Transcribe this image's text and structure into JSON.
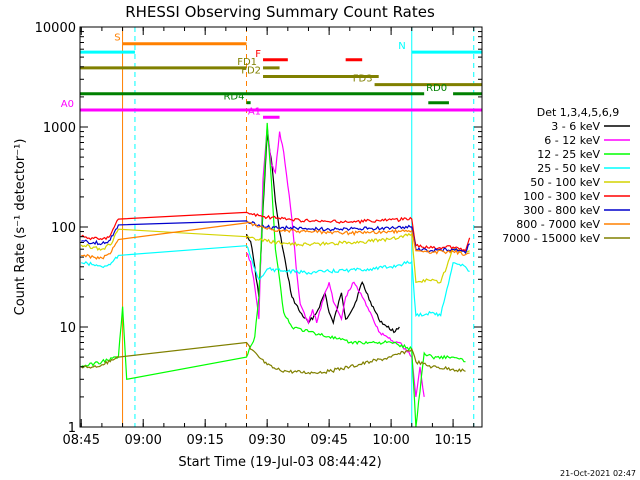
{
  "chart_data": {
    "type": "line",
    "title": "RHESSI Observing Summary Count Rates",
    "xlabel": "Start Time (19-Jul-03 08:44:42)",
    "ylabel": "Count Rate (s⁻¹ detector⁻¹)",
    "y_scale": "log",
    "ylim": [
      1,
      10000
    ],
    "xlim": [
      "08:44:42",
      "10:22:00"
    ],
    "x_ticks": [
      "08:45",
      "09:00",
      "09:15",
      "09:30",
      "09:45",
      "10:00",
      "10:15"
    ],
    "y_ticks": [
      "1",
      "10",
      "100",
      "1000",
      "10000"
    ],
    "legend_title": "Det 1,3,4,5,6,9",
    "legend_position": "right",
    "timestamp": "21-Oct-2021 02:47",
    "series": [
      {
        "name": "3 - 6 keV",
        "color": "#000000",
        "points": [
          [
            "09:25",
            85
          ],
          [
            "09:26",
            72
          ],
          [
            "09:27",
            40
          ],
          [
            "09:28",
            20
          ],
          [
            "09:29",
            150
          ],
          [
            "09:30",
            850
          ],
          [
            "09:31",
            480
          ],
          [
            "09:32",
            180
          ],
          [
            "09:33",
            90
          ],
          [
            "09:34",
            55
          ],
          [
            "09:35",
            32
          ],
          [
            "09:36",
            20
          ],
          [
            "09:38",
            14
          ],
          [
            "09:40",
            11
          ],
          [
            "09:42",
            14
          ],
          [
            "09:44",
            22
          ],
          [
            "09:45",
            14
          ],
          [
            "09:46",
            11
          ],
          [
            "09:48",
            22
          ],
          [
            "09:49",
            12
          ],
          [
            "09:51",
            16
          ],
          [
            "09:53",
            28
          ],
          [
            "09:55",
            18
          ],
          [
            "09:57",
            12
          ],
          [
            "09:59",
            10
          ],
          [
            "10:01",
            9
          ],
          [
            "10:02",
            10
          ]
        ]
      },
      {
        "name": "6 - 12 keV",
        "color": "#ff00ff",
        "points": [
          [
            "09:25",
            55
          ],
          [
            "09:26",
            45
          ],
          [
            "09:27",
            25
          ],
          [
            "09:28",
            12
          ],
          [
            "09:29",
            300
          ],
          [
            "09:30",
            1000
          ],
          [
            "09:31",
            420
          ],
          [
            "09:32",
            350
          ],
          [
            "09:33",
            900
          ],
          [
            "09:34",
            560
          ],
          [
            "09:35",
            260
          ],
          [
            "09:36",
            120
          ],
          [
            "09:37",
            40
          ],
          [
            "09:38",
            17
          ],
          [
            "09:40",
            11
          ],
          [
            "09:41",
            15
          ],
          [
            "09:42",
            11
          ],
          [
            "09:44",
            22
          ],
          [
            "09:45",
            28
          ],
          [
            "09:46",
            18
          ],
          [
            "09:48",
            12
          ],
          [
            "09:49",
            20
          ],
          [
            "09:51",
            28
          ],
          [
            "09:53",
            20
          ],
          [
            "09:55",
            14
          ],
          [
            "09:57",
            9
          ],
          [
            "09:59",
            8
          ],
          [
            "10:01",
            7
          ],
          [
            "10:02",
            7
          ],
          [
            "10:05",
            5
          ],
          [
            "10:06",
            2
          ],
          [
            "10:07",
            4
          ],
          [
            "10:08",
            2
          ]
        ]
      },
      {
        "name": "12 - 25 keV",
        "color": "#00ff00",
        "points": [
          [
            "08:45",
            4
          ],
          [
            "08:50",
            4.5
          ],
          [
            "08:54",
            5
          ],
          [
            "08:55",
            16
          ],
          [
            "08:56",
            3
          ],
          [
            "09:25",
            5
          ],
          [
            "09:27",
            8
          ],
          [
            "09:28",
            20
          ],
          [
            "09:29",
            180
          ],
          [
            "09:30",
            1100
          ],
          [
            "09:31",
            300
          ],
          [
            "09:32",
            60
          ],
          [
            "09:33",
            30
          ],
          [
            "09:34",
            14
          ],
          [
            "09:36",
            10
          ],
          [
            "09:40",
            9
          ],
          [
            "09:45",
            8
          ],
          [
            "09:50",
            7
          ],
          [
            "09:55",
            7
          ],
          [
            "10:00",
            7
          ],
          [
            "10:05",
            6
          ],
          [
            "10:06",
            1
          ],
          [
            "10:08",
            5.5
          ],
          [
            "10:10",
            5
          ],
          [
            "10:15",
            5
          ],
          [
            "10:18",
            4.5
          ]
        ]
      },
      {
        "name": "25 - 50 keV",
        "color": "#00ffff",
        "points": [
          [
            "08:45",
            44
          ],
          [
            "08:48",
            42
          ],
          [
            "08:50",
            40
          ],
          [
            "08:52",
            42
          ],
          [
            "08:54",
            52
          ],
          [
            "09:25",
            65
          ],
          [
            "09:26",
            50
          ],
          [
            "09:27",
            38
          ],
          [
            "09:28",
            30
          ],
          [
            "09:30",
            38
          ],
          [
            "09:35",
            36
          ],
          [
            "09:40",
            35
          ],
          [
            "09:45",
            36
          ],
          [
            "09:50",
            37
          ],
          [
            "09:55",
            38
          ],
          [
            "10:00",
            40
          ],
          [
            "10:05",
            45
          ],
          [
            "10:06",
            13
          ],
          [
            "10:10",
            14
          ],
          [
            "10:12",
            13
          ],
          [
            "10:15",
            44
          ],
          [
            "10:18",
            40
          ],
          [
            "10:19",
            36
          ]
        ]
      },
      {
        "name": "50 - 100 keV",
        "color": "#d4d400",
        "points": [
          [
            "08:45",
            66
          ],
          [
            "08:48",
            63
          ],
          [
            "08:50",
            60
          ],
          [
            "08:52",
            66
          ],
          [
            "08:54",
            95
          ],
          [
            "09:25",
            80
          ],
          [
            "09:28",
            74
          ],
          [
            "09:30",
            72
          ],
          [
            "09:35",
            68
          ],
          [
            "09:40",
            67
          ],
          [
            "09:45",
            68
          ],
          [
            "09:50",
            70
          ],
          [
            "09:55",
            72
          ],
          [
            "10:00",
            76
          ],
          [
            "10:05",
            85
          ],
          [
            "10:06",
            28
          ],
          [
            "10:10",
            30
          ],
          [
            "10:12",
            28
          ],
          [
            "10:15",
            60
          ],
          [
            "10:18",
            56
          ],
          [
            "10:19",
            58
          ]
        ]
      },
      {
        "name": "100 - 300 keV",
        "color": "#ff0000",
        "points": [
          [
            "08:45",
            80
          ],
          [
            "08:48",
            77
          ],
          [
            "08:50",
            75
          ],
          [
            "08:52",
            82
          ],
          [
            "08:54",
            120
          ],
          [
            "09:25",
            140
          ],
          [
            "09:28",
            130
          ],
          [
            "09:30",
            125
          ],
          [
            "09:35",
            120
          ],
          [
            "09:40",
            115
          ],
          [
            "09:45",
            113
          ],
          [
            "09:50",
            112
          ],
          [
            "09:55",
            115
          ],
          [
            "10:00",
            118
          ],
          [
            "10:05",
            120
          ],
          [
            "10:06",
            65
          ],
          [
            "10:10",
            62
          ],
          [
            "10:15",
            63
          ],
          [
            "10:18",
            58
          ],
          [
            "10:19",
            78
          ]
        ]
      },
      {
        "name": "300 - 800 keV",
        "color": "#0000cc",
        "points": [
          [
            "08:45",
            72
          ],
          [
            "08:48",
            70
          ],
          [
            "08:50",
            68
          ],
          [
            "08:52",
            74
          ],
          [
            "08:54",
            105
          ],
          [
            "09:25",
            115
          ],
          [
            "09:28",
            105
          ],
          [
            "09:30",
            100
          ],
          [
            "09:35",
            98
          ],
          [
            "09:40",
            96
          ],
          [
            "09:45",
            95
          ],
          [
            "09:50",
            95
          ],
          [
            "09:55",
            97
          ],
          [
            "10:00",
            98
          ],
          [
            "10:05",
            100
          ],
          [
            "10:06",
            60
          ],
          [
            "10:10",
            58
          ],
          [
            "10:15",
            60
          ],
          [
            "10:18",
            55
          ],
          [
            "10:19",
            68
          ]
        ]
      },
      {
        "name": "800 - 7000 keV",
        "color": "#ff8000",
        "points": [
          [
            "08:45",
            52
          ],
          [
            "08:48",
            50
          ],
          [
            "08:50",
            49
          ],
          [
            "08:52",
            54
          ],
          [
            "08:54",
            75
          ],
          [
            "09:25",
            110
          ],
          [
            "09:28",
            100
          ],
          [
            "09:30",
            95
          ],
          [
            "09:35",
            92
          ],
          [
            "09:40",
            90
          ],
          [
            "09:45",
            88
          ],
          [
            "09:50",
            87
          ],
          [
            "09:55",
            88
          ],
          [
            "10:00",
            90
          ],
          [
            "10:05",
            92
          ],
          [
            "10:06",
            58
          ],
          [
            "10:10",
            56
          ],
          [
            "10:15",
            57
          ],
          [
            "10:18",
            53
          ],
          [
            "10:19",
            55
          ]
        ]
      },
      {
        "name": "7000 - 15000 keV",
        "color": "#808000",
        "points": [
          [
            "08:45",
            4
          ],
          [
            "08:48",
            4
          ],
          [
            "08:50",
            4.2
          ],
          [
            "08:52",
            4.5
          ],
          [
            "08:54",
            5
          ],
          [
            "09:25",
            7
          ],
          [
            "09:26",
            6
          ],
          [
            "09:28",
            5
          ],
          [
            "09:30",
            4.2
          ],
          [
            "09:32",
            3.8
          ],
          [
            "09:35",
            3.6
          ],
          [
            "09:40",
            3.5
          ],
          [
            "09:45",
            3.6
          ],
          [
            "09:50",
            4
          ],
          [
            "09:55",
            4.5
          ],
          [
            "10:00",
            5
          ],
          [
            "10:05",
            6
          ],
          [
            "10:06",
            4.5
          ],
          [
            "10:10",
            4
          ],
          [
            "10:15",
            3.8
          ],
          [
            "10:18",
            3.6
          ]
        ]
      }
    ],
    "flag_bars": [
      {
        "label": "S",
        "color": "#ff8000",
        "y": 6800,
        "segments": [
          [
            "08:55",
            "09:25"
          ]
        ]
      },
      {
        "label": "N",
        "color": "#00ffff",
        "y": 5600,
        "segments": [
          [
            "08:44:42",
            "08:58"
          ],
          [
            "10:05",
            "10:22"
          ]
        ]
      },
      {
        "label": "F",
        "color": "#ff0000",
        "y": 4700,
        "segments": [
          [
            "09:29",
            "09:35"
          ],
          [
            "09:49",
            "09:53"
          ]
        ]
      },
      {
        "label": "FD1",
        "color": "#808000",
        "y": 3900,
        "segments": [
          [
            "08:44:42",
            "09:25"
          ],
          [
            "09:29",
            "09:33"
          ]
        ]
      },
      {
        "label": "FD2",
        "color": "#808000",
        "y": 3200,
        "segments": [
          [
            "09:29",
            "09:57"
          ]
        ]
      },
      {
        "label": "FD3",
        "color": "#808000",
        "y": 2650,
        "segments": [
          [
            "09:56",
            "10:22"
          ]
        ]
      },
      {
        "label": "RD0",
        "color": "#008000",
        "y": 2150,
        "segments": [
          [
            "08:44:42",
            "10:08"
          ],
          [
            "10:15",
            "10:22"
          ]
        ]
      },
      {
        "label": "RD4",
        "color": "#008000",
        "y": 1750,
        "segments": [
          [
            "09:25",
            "09:26"
          ],
          [
            "10:09",
            "10:14"
          ]
        ]
      },
      {
        "label": "A0",
        "color": "#ff00ff",
        "y": 1480,
        "segments": [
          [
            "08:44:42",
            "10:22"
          ]
        ]
      },
      {
        "label": "A1",
        "color": "#ff00ff",
        "y": 1250,
        "segments": [
          [
            "09:29",
            "09:33"
          ]
        ]
      }
    ],
    "vertical_markers": [
      {
        "time": "08:55",
        "color": "#ff8000",
        "style": "solid"
      },
      {
        "time": "08:58",
        "color": "#00ffff",
        "style": "dashed"
      },
      {
        "time": "09:25",
        "color": "#ff8000",
        "style": "dashed"
      },
      {
        "time": "10:05",
        "color": "#00ffff",
        "style": "solid"
      },
      {
        "time": "10:20",
        "color": "#00ffff",
        "style": "dashed"
      }
    ]
  }
}
